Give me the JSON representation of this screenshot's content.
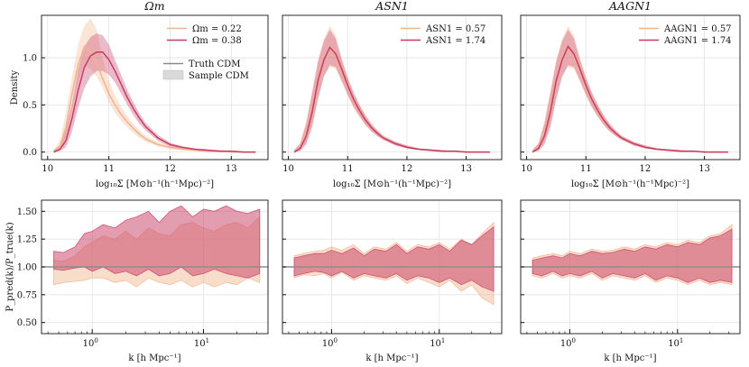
{
  "figure": {
    "density_ylabel": "Density",
    "density_xlabel": "log₁₀Σ [M⊙h⁻¹(h⁻¹Mpc)⁻²]",
    "ratio_ylabel": "P_pred(k)/P_true(k)",
    "ratio_xlabel": "k [h Mpc⁻¹]",
    "colors": {
      "low": "#f0b48c",
      "high": "#c83c64",
      "truth": "#8c8c8c",
      "sample": "#d9d9d9"
    }
  },
  "chart_data": [
    {
      "type": "line",
      "panel": "density-omega",
      "title": "Ωm",
      "xlabel": "log10Σ [M⊙h⁻¹(h⁻¹Mpc)⁻²]",
      "ylabel": "Density",
      "xlim": [
        9.9,
        13.6
      ],
      "ylim": [
        -0.08,
        1.45
      ],
      "xticks": [
        10,
        11,
        12,
        13
      ],
      "yticks": [
        0.0,
        0.5,
        1.0
      ],
      "x": [
        10.1,
        10.2,
        10.3,
        10.4,
        10.5,
        10.6,
        10.7,
        10.8,
        10.9,
        11.0,
        11.1,
        11.2,
        11.3,
        11.4,
        11.5,
        11.6,
        11.8,
        12.0,
        12.2,
        12.4,
        12.6,
        12.8,
        13.0,
        13.2,
        13.4
      ],
      "legend": [
        "Ωm = 0.22",
        "Ωm = 0.38",
        "Truth CDM",
        "Sample CDM"
      ],
      "series": [
        {
          "name": "Ωm = 0.22",
          "color": "low",
          "values": [
            0.01,
            0.06,
            0.26,
            0.62,
            0.93,
            1.12,
            1.06,
            0.94,
            0.78,
            0.62,
            0.5,
            0.4,
            0.32,
            0.25,
            0.19,
            0.14,
            0.08,
            0.05,
            0.03,
            0.02,
            0.01,
            0.01,
            0.0,
            0.0,
            0.0
          ],
          "band_low": [
            0.0,
            0.02,
            0.15,
            0.45,
            0.74,
            0.92,
            0.88,
            0.8,
            0.68,
            0.53,
            0.42,
            0.33,
            0.26,
            0.2,
            0.15,
            0.11,
            0.06,
            0.03,
            0.02,
            0.01,
            0.0,
            0.0,
            0.0,
            0.0,
            0.0
          ],
          "band_high": [
            0.03,
            0.12,
            0.42,
            0.8,
            1.14,
            1.34,
            1.42,
            1.3,
            1.0,
            0.76,
            0.6,
            0.48,
            0.38,
            0.3,
            0.23,
            0.17,
            0.11,
            0.07,
            0.04,
            0.03,
            0.02,
            0.01,
            0.01,
            0.0,
            0.0
          ]
        },
        {
          "name": "Ωm = 0.38",
          "color": "high",
          "values": [
            0.0,
            0.03,
            0.12,
            0.36,
            0.66,
            0.9,
            1.02,
            1.06,
            1.06,
            0.98,
            0.86,
            0.72,
            0.58,
            0.46,
            0.36,
            0.27,
            0.15,
            0.08,
            0.05,
            0.03,
            0.02,
            0.01,
            0.01,
            0.0,
            0.0
          ],
          "band_low": [
            0.0,
            0.01,
            0.05,
            0.22,
            0.47,
            0.68,
            0.8,
            0.86,
            0.86,
            0.82,
            0.74,
            0.62,
            0.5,
            0.39,
            0.3,
            0.23,
            0.12,
            0.06,
            0.03,
            0.02,
            0.01,
            0.0,
            0.0,
            0.0,
            0.0
          ],
          "band_high": [
            0.02,
            0.07,
            0.24,
            0.52,
            0.88,
            1.12,
            1.22,
            1.26,
            1.24,
            1.14,
            0.98,
            0.82,
            0.66,
            0.53,
            0.41,
            0.31,
            0.18,
            0.1,
            0.06,
            0.04,
            0.03,
            0.02,
            0.01,
            0.0,
            0.0
          ]
        }
      ]
    },
    {
      "type": "line",
      "panel": "density-sn1",
      "title": "ASN1",
      "xlabel": "log10Σ [M⊙h⁻¹(h⁻¹Mpc)⁻²]",
      "xlim": [
        9.9,
        13.6
      ],
      "ylim": [
        -0.08,
        1.45
      ],
      "xticks": [
        10,
        11,
        12,
        13
      ],
      "yticks": [
        0.0,
        0.5,
        1.0
      ],
      "x": [
        10.1,
        10.2,
        10.3,
        10.4,
        10.5,
        10.6,
        10.7,
        10.8,
        10.9,
        11.0,
        11.1,
        11.2,
        11.3,
        11.4,
        11.5,
        11.6,
        11.8,
        12.0,
        12.2,
        12.4,
        12.6,
        12.8,
        13.0,
        13.2,
        13.4
      ],
      "legend": [
        "ASN1 = 0.57",
        "ASN1 = 1.74"
      ],
      "series": [
        {
          "name": "ASN1 = 0.57",
          "color": "low",
          "values": [
            0.0,
            0.05,
            0.2,
            0.45,
            0.78,
            1.0,
            1.1,
            1.02,
            0.86,
            0.7,
            0.55,
            0.43,
            0.33,
            0.26,
            0.2,
            0.15,
            0.09,
            0.05,
            0.03,
            0.02,
            0.01,
            0.01,
            0.0,
            0.0,
            0.0
          ],
          "band_low": [
            0.0,
            0.02,
            0.1,
            0.28,
            0.58,
            0.82,
            0.9,
            0.88,
            0.74,
            0.6,
            0.47,
            0.37,
            0.28,
            0.22,
            0.17,
            0.13,
            0.07,
            0.04,
            0.02,
            0.01,
            0.0,
            0.0,
            0.0,
            0.0,
            0.0
          ],
          "band_high": [
            0.02,
            0.1,
            0.33,
            0.64,
            0.98,
            1.2,
            1.34,
            1.24,
            1.0,
            0.8,
            0.64,
            0.5,
            0.39,
            0.3,
            0.23,
            0.18,
            0.11,
            0.07,
            0.04,
            0.03,
            0.02,
            0.01,
            0.01,
            0.0,
            0.0
          ]
        },
        {
          "name": "ASN1 = 1.74",
          "color": "high",
          "values": [
            0.0,
            0.04,
            0.17,
            0.42,
            0.76,
            0.98,
            1.11,
            1.04,
            0.88,
            0.71,
            0.56,
            0.44,
            0.34,
            0.26,
            0.2,
            0.15,
            0.09,
            0.05,
            0.03,
            0.02,
            0.01,
            0.01,
            0.0,
            0.0,
            0.0
          ],
          "band_low": [
            0.0,
            0.01,
            0.08,
            0.26,
            0.56,
            0.8,
            0.92,
            0.9,
            0.76,
            0.61,
            0.48,
            0.38,
            0.29,
            0.22,
            0.17,
            0.13,
            0.07,
            0.04,
            0.02,
            0.01,
            0.0,
            0.0,
            0.0,
            0.0,
            0.0
          ],
          "band_high": [
            0.02,
            0.09,
            0.3,
            0.62,
            0.96,
            1.18,
            1.3,
            1.2,
            0.98,
            0.79,
            0.63,
            0.5,
            0.39,
            0.3,
            0.23,
            0.17,
            0.11,
            0.07,
            0.04,
            0.03,
            0.02,
            0.01,
            0.01,
            0.0,
            0.0
          ]
        }
      ]
    },
    {
      "type": "line",
      "panel": "density-agn1",
      "title": "AAGN1",
      "xlabel": "log10Σ [M⊙h⁻¹(h⁻¹Mpc)⁻²]",
      "xlim": [
        9.9,
        13.6
      ],
      "ylim": [
        -0.08,
        1.45
      ],
      "xticks": [
        10,
        11,
        12,
        13
      ],
      "yticks": [
        0.0,
        0.5,
        1.0
      ],
      "x": [
        10.1,
        10.2,
        10.3,
        10.4,
        10.5,
        10.6,
        10.7,
        10.8,
        10.9,
        11.0,
        11.1,
        11.2,
        11.3,
        11.4,
        11.5,
        11.6,
        11.8,
        12.0,
        12.2,
        12.4,
        12.6,
        12.8,
        13.0,
        13.2,
        13.4
      ],
      "legend": [
        "AAGN1 = 0.57",
        "AAGN1 = 1.74"
      ],
      "series": [
        {
          "name": "AAGN1 = 0.57",
          "color": "low",
          "values": [
            0.0,
            0.05,
            0.2,
            0.46,
            0.78,
            1.0,
            1.11,
            1.02,
            0.86,
            0.7,
            0.55,
            0.43,
            0.33,
            0.26,
            0.2,
            0.15,
            0.09,
            0.05,
            0.03,
            0.02,
            0.01,
            0.01,
            0.0,
            0.0,
            0.0
          ],
          "band_low": [
            0.0,
            0.02,
            0.1,
            0.28,
            0.58,
            0.82,
            0.9,
            0.88,
            0.74,
            0.6,
            0.47,
            0.37,
            0.28,
            0.22,
            0.17,
            0.13,
            0.07,
            0.04,
            0.02,
            0.01,
            0.0,
            0.0,
            0.0,
            0.0,
            0.0
          ],
          "band_high": [
            0.02,
            0.1,
            0.33,
            0.64,
            0.98,
            1.2,
            1.34,
            1.24,
            1.0,
            0.8,
            0.64,
            0.5,
            0.39,
            0.3,
            0.23,
            0.18,
            0.11,
            0.07,
            0.04,
            0.03,
            0.02,
            0.01,
            0.01,
            0.0,
            0.0
          ]
        },
        {
          "name": "AAGN1 = 1.74",
          "color": "high",
          "values": [
            0.0,
            0.04,
            0.17,
            0.42,
            0.76,
            0.98,
            1.12,
            1.04,
            0.88,
            0.71,
            0.56,
            0.44,
            0.34,
            0.26,
            0.2,
            0.15,
            0.09,
            0.05,
            0.03,
            0.02,
            0.01,
            0.01,
            0.0,
            0.0,
            0.0
          ],
          "band_low": [
            0.0,
            0.01,
            0.08,
            0.26,
            0.56,
            0.8,
            0.92,
            0.9,
            0.76,
            0.61,
            0.48,
            0.38,
            0.29,
            0.22,
            0.17,
            0.13,
            0.07,
            0.04,
            0.02,
            0.01,
            0.0,
            0.0,
            0.0,
            0.0,
            0.0
          ],
          "band_high": [
            0.02,
            0.09,
            0.3,
            0.62,
            0.96,
            1.18,
            1.3,
            1.2,
            0.98,
            0.79,
            0.63,
            0.5,
            0.39,
            0.3,
            0.23,
            0.17,
            0.11,
            0.07,
            0.04,
            0.03,
            0.02,
            0.01,
            0.01,
            0.0,
            0.0
          ]
        }
      ]
    },
    {
      "type": "area",
      "panel": "ratio-omega",
      "xlabel": "k [h Mpc⁻¹]",
      "ylabel": "P_pred(k)/P_true(k)",
      "xscale": "log",
      "xlim": [
        0.35,
        38
      ],
      "ylim": [
        0.4,
        1.6
      ],
      "yticks": [
        0.5,
        0.75,
        1.0,
        1.25,
        1.5
      ],
      "xticks": [
        1,
        10
      ],
      "truth_line": 1.0,
      "x": [
        0.45,
        0.55,
        0.7,
        0.85,
        1.0,
        1.25,
        1.6,
        2.0,
        2.5,
        3.2,
        4.0,
        5.0,
        6.3,
        8.0,
        10.0,
        12.5,
        16.0,
        20.0,
        25.0,
        32.0
      ],
      "series": [
        {
          "name": "Ωm = 0.22",
          "color": "low",
          "low": [
            0.84,
            0.86,
            0.87,
            0.88,
            0.9,
            0.9,
            0.86,
            0.88,
            0.82,
            0.9,
            0.86,
            0.84,
            0.88,
            0.82,
            0.86,
            0.82,
            0.86,
            0.84,
            0.9,
            0.86
          ],
          "high": [
            1.06,
            1.05,
            1.1,
            1.18,
            1.22,
            1.28,
            1.25,
            1.32,
            1.25,
            1.35,
            1.3,
            1.28,
            1.38,
            1.4,
            1.35,
            1.32,
            1.38,
            1.4,
            1.35,
            1.45
          ]
        },
        {
          "name": "Ωm = 0.38",
          "color": "high",
          "low": [
            0.98,
            0.97,
            0.99,
            1.0,
            0.96,
            1.0,
            0.94,
            0.96,
            0.92,
            0.98,
            0.92,
            0.94,
            1.0,
            0.92,
            0.94,
            0.98,
            0.94,
            0.92,
            0.9,
            0.94
          ],
          "high": [
            1.14,
            1.13,
            1.18,
            1.3,
            1.32,
            1.38,
            1.35,
            1.42,
            1.45,
            1.5,
            1.4,
            1.5,
            1.55,
            1.45,
            1.52,
            1.5,
            1.55,
            1.5,
            1.48,
            1.52
          ]
        }
      ]
    },
    {
      "type": "area",
      "panel": "ratio-sn1",
      "xlabel": "k [h Mpc⁻¹]",
      "xscale": "log",
      "xlim": [
        0.35,
        38
      ],
      "ylim": [
        0.4,
        1.6
      ],
      "yticks": [
        0.5,
        0.75,
        1.0,
        1.25,
        1.5
      ],
      "xticks": [
        1,
        10
      ],
      "truth_line": 1.0,
      "x": [
        0.45,
        0.55,
        0.7,
        0.85,
        1.0,
        1.25,
        1.6,
        2.0,
        2.5,
        3.2,
        4.0,
        5.0,
        6.3,
        8.0,
        10.0,
        12.5,
        16.0,
        20.0,
        25.0,
        32.0
      ],
      "series": [
        {
          "name": "ASN1 = 0.57",
          "color": "low",
          "low": [
            0.9,
            0.93,
            0.92,
            0.94,
            0.9,
            0.95,
            0.88,
            0.92,
            0.9,
            0.88,
            0.92,
            0.85,
            0.9,
            0.86,
            0.82,
            0.88,
            0.78,
            0.84,
            0.72,
            0.66
          ],
          "high": [
            1.1,
            1.12,
            1.14,
            1.15,
            1.18,
            1.15,
            1.2,
            1.12,
            1.18,
            1.16,
            1.22,
            1.14,
            1.2,
            1.18,
            1.22,
            1.16,
            1.25,
            1.2,
            1.3,
            1.4
          ]
        },
        {
          "name": "ASN1 = 1.74",
          "color": "high",
          "low": [
            0.92,
            0.94,
            0.96,
            0.95,
            0.92,
            0.96,
            0.9,
            0.94,
            0.92,
            0.9,
            0.94,
            0.88,
            0.92,
            0.9,
            0.86,
            0.9,
            0.84,
            0.88,
            0.82,
            0.78
          ],
          "high": [
            1.08,
            1.1,
            1.12,
            1.12,
            1.15,
            1.12,
            1.17,
            1.1,
            1.16,
            1.14,
            1.2,
            1.12,
            1.18,
            1.16,
            1.2,
            1.14,
            1.24,
            1.2,
            1.28,
            1.36
          ]
        }
      ]
    },
    {
      "type": "area",
      "panel": "ratio-agn1",
      "xlabel": "k [h Mpc⁻¹]",
      "xscale": "log",
      "xlim": [
        0.35,
        38
      ],
      "ylim": [
        0.4,
        1.6
      ],
      "yticks": [
        0.5,
        0.75,
        1.0,
        1.25,
        1.5
      ],
      "xticks": [
        1,
        10
      ],
      "truth_line": 1.0,
      "x": [
        0.45,
        0.55,
        0.7,
        0.85,
        1.0,
        1.25,
        1.6,
        2.0,
        2.5,
        3.2,
        4.0,
        5.0,
        6.3,
        8.0,
        10.0,
        12.5,
        16.0,
        20.0,
        25.0,
        32.0
      ],
      "series": [
        {
          "name": "AAGN1 = 0.57",
          "color": "low",
          "low": [
            0.92,
            0.9,
            0.94,
            0.9,
            0.92,
            0.9,
            0.94,
            0.88,
            0.92,
            0.9,
            0.88,
            0.92,
            0.86,
            0.9,
            0.88,
            0.84,
            0.88,
            0.84,
            0.86,
            0.84
          ],
          "high": [
            1.08,
            1.1,
            1.12,
            1.1,
            1.14,
            1.12,
            1.16,
            1.14,
            1.15,
            1.18,
            1.16,
            1.2,
            1.18,
            1.22,
            1.2,
            1.24,
            1.22,
            1.28,
            1.3,
            1.38
          ]
        },
        {
          "name": "AAGN1 = 1.74",
          "color": "high",
          "low": [
            0.94,
            0.92,
            0.96,
            0.92,
            0.94,
            0.92,
            0.96,
            0.9,
            0.94,
            0.92,
            0.9,
            0.94,
            0.88,
            0.92,
            0.9,
            0.86,
            0.9,
            0.86,
            0.88,
            0.86
          ],
          "high": [
            1.06,
            1.08,
            1.1,
            1.08,
            1.12,
            1.1,
            1.14,
            1.12,
            1.13,
            1.16,
            1.14,
            1.18,
            1.16,
            1.2,
            1.18,
            1.22,
            1.2,
            1.26,
            1.28,
            1.34
          ]
        }
      ]
    }
  ]
}
